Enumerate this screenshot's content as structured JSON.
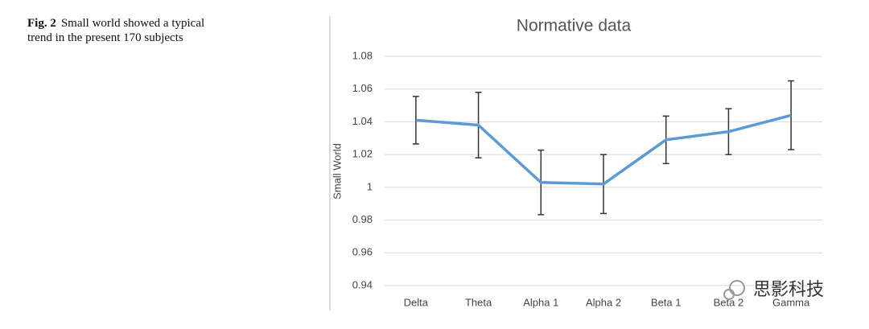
{
  "caption": {
    "label": "Fig. 2",
    "text": "Small world showed a typical trend in the present 170 subjects"
  },
  "watermark": "思影科技",
  "chart_data": {
    "type": "line",
    "title": "Normative data",
    "y_label": "Small World",
    "categories": [
      "Delta",
      "Theta",
      "Alpha 1",
      "Alpha 2",
      "Beta 1",
      "Beta 2",
      "Gamma"
    ],
    "series": [
      {
        "name": "Small World",
        "color": "#5b9bd5",
        "values": [
          1.041,
          1.038,
          1.003,
          1.002,
          1.029,
          1.034,
          1.044
        ],
        "errors": [
          0.0145,
          0.02,
          0.0197,
          0.018,
          0.0145,
          0.014,
          0.021
        ]
      }
    ],
    "ylim": [
      0.94,
      1.08
    ],
    "yticks": [
      0.94,
      0.96,
      0.98,
      1,
      1.02,
      1.04,
      1.06,
      1.08
    ],
    "grid": true
  }
}
